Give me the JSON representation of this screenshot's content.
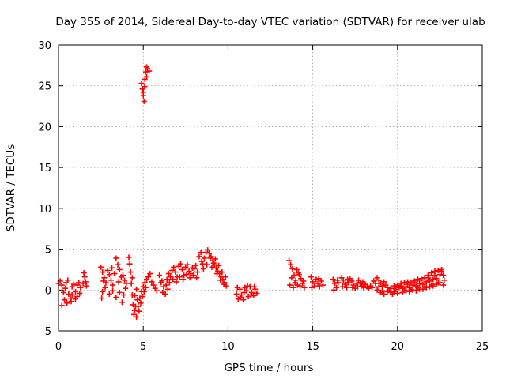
{
  "chart_data": {
    "type": "scatter",
    "title": "Day 355 of 2014, Sidereal Day-to-day VTEC variation (SDTVAR) for receiver ulab",
    "xlabel": "GPS time / hours",
    "ylabel": "SDTVAR / TECUs",
    "xlim": [
      0,
      25
    ],
    "ylim": [
      -5,
      30
    ],
    "xticks": [
      0,
      5,
      10,
      15,
      20,
      25
    ],
    "yticks": [
      -5,
      0,
      5,
      10,
      15,
      20,
      25,
      30
    ],
    "grid": true,
    "marker": "+",
    "color": "#ff0000",
    "series": [
      {
        "name": "SDTVAR",
        "points": [
          [
            0.0,
            0.8
          ],
          [
            0.1,
            1.1
          ],
          [
            0.2,
            0.6
          ],
          [
            0.3,
            -0.3
          ],
          [
            0.35,
            -1.2
          ],
          [
            0.45,
            0.9
          ],
          [
            0.55,
            1.2
          ],
          [
            0.6,
            -0.5
          ],
          [
            0.7,
            -1.0
          ],
          [
            0.8,
            0.4
          ],
          [
            0.9,
            0.7
          ],
          [
            1.0,
            -0.2
          ],
          [
            1.1,
            -0.8
          ],
          [
            1.2,
            0.9
          ],
          [
            1.3,
            0.3
          ],
          [
            0.2,
            -1.9
          ],
          [
            0.5,
            -1.6
          ],
          [
            0.75,
            -1.4
          ],
          [
            1.0,
            -1.1
          ],
          [
            1.1,
            0.6
          ],
          [
            1.5,
            2.1
          ],
          [
            1.55,
            1.6
          ],
          [
            1.6,
            1.0
          ],
          [
            1.65,
            0.5
          ],
          [
            1.45,
            0.8
          ],
          [
            0.4,
            0.2
          ],
          [
            0.8,
            -0.6
          ],
          [
            1.25,
            -0.4
          ],
          [
            2.5,
            2.8
          ],
          [
            2.6,
            2.2
          ],
          [
            2.7,
            1.5
          ],
          [
            2.8,
            0.9
          ],
          [
            2.9,
            2.4
          ],
          [
            3.0,
            1.9
          ],
          [
            3.1,
            1.2
          ],
          [
            3.2,
            0.6
          ],
          [
            3.3,
            2.0
          ],
          [
            3.4,
            3.9
          ],
          [
            3.5,
            3.1
          ],
          [
            3.6,
            2.5
          ],
          [
            3.7,
            1.6
          ],
          [
            3.8,
            1.8
          ],
          [
            3.9,
            1.2
          ],
          [
            4.0,
            0.8
          ],
          [
            2.55,
            -1.0
          ],
          [
            2.6,
            -0.2
          ],
          [
            2.75,
            0.3
          ],
          [
            3.0,
            -0.5
          ],
          [
            3.2,
            -0.1
          ],
          [
            3.4,
            -0.9
          ],
          [
            3.6,
            -0.3
          ],
          [
            3.75,
            -1.5
          ],
          [
            3.85,
            -0.6
          ],
          [
            3.95,
            0.2
          ],
          [
            2.65,
            1.1
          ],
          [
            3.55,
            1.0
          ],
          [
            3.15,
            2.7
          ],
          [
            4.15,
            4.0
          ],
          [
            4.2,
            3.2
          ],
          [
            4.25,
            2.2
          ],
          [
            4.3,
            0.8
          ],
          [
            4.35,
            -0.6
          ],
          [
            4.4,
            -1.8
          ],
          [
            4.5,
            -2.5
          ],
          [
            4.6,
            -3.3
          ],
          [
            4.7,
            -2.0
          ],
          [
            4.8,
            -1.0
          ],
          [
            4.9,
            -0.2
          ],
          [
            5.0,
            0.4
          ],
          [
            5.1,
            0.9
          ],
          [
            5.2,
            1.3
          ],
          [
            5.3,
            1.6
          ],
          [
            5.4,
            2.0
          ],
          [
            4.45,
            -3.0
          ],
          [
            4.55,
            -2.0
          ],
          [
            4.65,
            -1.2
          ],
          [
            4.75,
            -2.6
          ],
          [
            4.85,
            -1.6
          ],
          [
            4.95,
            -0.8
          ],
          [
            5.05,
            -0.2
          ],
          [
            5.15,
            0.3
          ],
          [
            4.5,
            -0.7
          ],
          [
            4.6,
            0.1
          ],
          [
            4.35,
            1.5
          ],
          [
            5.5,
            1.0
          ],
          [
            5.6,
            0.6
          ],
          [
            5.7,
            0.2
          ],
          [
            5.8,
            -0.1
          ],
          [
            4.9,
            25.3
          ],
          [
            4.95,
            24.6
          ],
          [
            5.0,
            23.8
          ],
          [
            5.05,
            23.1
          ],
          [
            5.1,
            25.8
          ],
          [
            5.15,
            26.7
          ],
          [
            5.2,
            27.3
          ],
          [
            5.25,
            27.1
          ],
          [
            5.35,
            26.8
          ],
          [
            5.0,
            24.2
          ],
          [
            5.08,
            24.9
          ],
          [
            5.2,
            26.1
          ],
          [
            5.95,
            1.8
          ],
          [
            6.1,
            1.1
          ],
          [
            6.2,
            0.4
          ],
          [
            6.3,
            -0.5
          ],
          [
            6.4,
            1.3
          ],
          [
            6.5,
            2.0
          ],
          [
            6.6,
            1.6
          ],
          [
            6.7,
            2.4
          ],
          [
            6.8,
            2.8
          ],
          [
            6.9,
            2.2
          ],
          [
            7.0,
            1.6
          ],
          [
            7.1,
            2.9
          ],
          [
            7.2,
            3.2
          ],
          [
            7.3,
            2.5
          ],
          [
            7.4,
            1.8
          ],
          [
            7.5,
            2.8
          ],
          [
            7.6,
            3.1
          ],
          [
            7.7,
            2.3
          ],
          [
            7.8,
            2.0
          ],
          [
            7.9,
            2.7
          ],
          [
            8.0,
            2.6
          ],
          [
            8.1,
            3.0
          ],
          [
            8.2,
            2.2
          ],
          [
            6.15,
            -0.3
          ],
          [
            6.35,
            0.6
          ],
          [
            6.55,
            0.9
          ],
          [
            6.75,
            1.3
          ],
          [
            6.95,
            1.0
          ],
          [
            7.15,
            1.6
          ],
          [
            7.35,
            1.3
          ],
          [
            7.55,
            1.9
          ],
          [
            7.75,
            1.5
          ],
          [
            7.95,
            1.8
          ],
          [
            8.15,
            1.5
          ],
          [
            6.05,
            0.9
          ],
          [
            6.45,
            0.1
          ],
          [
            8.3,
            4.1
          ],
          [
            8.45,
            3.5
          ],
          [
            8.6,
            3.9
          ],
          [
            8.7,
            4.6
          ],
          [
            8.8,
            4.9
          ],
          [
            8.9,
            4.5
          ],
          [
            9.0,
            4.1
          ],
          [
            9.1,
            3.6
          ],
          [
            9.2,
            3.1
          ],
          [
            9.3,
            2.7
          ],
          [
            9.4,
            2.3
          ],
          [
            9.5,
            2.0
          ],
          [
            9.6,
            1.6
          ],
          [
            9.7,
            1.3
          ],
          [
            9.8,
            0.9
          ],
          [
            9.9,
            0.5
          ],
          [
            8.5,
            3.2
          ],
          [
            8.95,
            3.9
          ],
          [
            9.15,
            3.3
          ],
          [
            9.35,
            2.0
          ],
          [
            9.55,
            1.2
          ],
          [
            9.75,
            0.7
          ],
          [
            9.05,
            2.8
          ],
          [
            8.75,
            3.1
          ],
          [
            8.55,
            2.6
          ],
          [
            8.4,
            4.6
          ],
          [
            9.25,
            3.8
          ],
          [
            9.45,
            3.0
          ],
          [
            9.65,
            2.2
          ],
          [
            9.85,
            1.6
          ],
          [
            10.5,
            -0.5
          ],
          [
            10.6,
            -1.1
          ],
          [
            10.7,
            0.1
          ],
          [
            10.8,
            -0.6
          ],
          [
            10.9,
            -1.2
          ],
          [
            11.0,
            0.3
          ],
          [
            11.1,
            -0.1
          ],
          [
            11.2,
            -0.8
          ],
          [
            11.3,
            0.4
          ],
          [
            11.4,
            -0.3
          ],
          [
            11.5,
            -0.7
          ],
          [
            11.6,
            0.1
          ],
          [
            11.7,
            -0.4
          ],
          [
            10.55,
            0.3
          ],
          [
            10.75,
            -0.9
          ],
          [
            10.95,
            -0.3
          ],
          [
            11.15,
            0.5
          ],
          [
            11.35,
            -0.6
          ],
          [
            11.55,
            0.4
          ],
          [
            13.6,
            3.6
          ],
          [
            13.7,
            3.1
          ],
          [
            13.8,
            2.6
          ],
          [
            13.9,
            1.8
          ],
          [
            14.0,
            1.2
          ],
          [
            14.1,
            0.6
          ],
          [
            14.2,
            1.9
          ],
          [
            14.3,
            1.4
          ],
          [
            14.4,
            0.8
          ],
          [
            14.5,
            0.3
          ],
          [
            13.65,
            0.6
          ],
          [
            13.75,
            1.5
          ],
          [
            13.85,
            0.3
          ],
          [
            13.95,
            0.9
          ],
          [
            14.05,
            2.5
          ],
          [
            14.15,
            2.1
          ],
          [
            14.25,
            0.5
          ],
          [
            14.45,
            1.1
          ],
          [
            14.9,
            1.6
          ],
          [
            15.0,
            1.0
          ],
          [
            15.1,
            0.5
          ],
          [
            15.2,
            1.3
          ],
          [
            15.3,
            0.8
          ],
          [
            15.4,
            0.4
          ],
          [
            15.5,
            1.1
          ],
          [
            15.6,
            0.6
          ],
          [
            14.95,
            0.3
          ],
          [
            15.35,
            1.4
          ],
          [
            16.2,
            1.3
          ],
          [
            16.3,
            0.8
          ],
          [
            16.4,
            0.3
          ],
          [
            16.5,
            0.9
          ],
          [
            16.7,
            1.5
          ],
          [
            16.8,
            1.2
          ],
          [
            16.9,
            0.7
          ],
          [
            17.0,
            0.3
          ],
          [
            17.1,
            0.9
          ],
          [
            17.2,
            1.4
          ],
          [
            17.3,
            1.1
          ],
          [
            17.4,
            0.6
          ],
          [
            17.5,
            0.2
          ],
          [
            17.6,
            0.8
          ],
          [
            17.7,
            1.2
          ],
          [
            17.8,
            0.9
          ],
          [
            17.9,
            0.5
          ],
          [
            18.0,
            0.3
          ],
          [
            18.1,
            0.7
          ],
          [
            18.2,
            0.4
          ],
          [
            18.3,
            0.2
          ],
          [
            18.4,
            0.5
          ],
          [
            18.5,
            0.3
          ],
          [
            16.25,
            0.0
          ],
          [
            16.45,
            1.2
          ],
          [
            16.75,
            0.4
          ],
          [
            17.05,
            1.3
          ],
          [
            17.35,
            0.3
          ],
          [
            17.65,
            0.4
          ],
          [
            17.95,
            1.0
          ],
          [
            18.6,
            1.1
          ],
          [
            18.7,
            0.8
          ],
          [
            18.8,
            1.5
          ],
          [
            18.9,
            1.2
          ],
          [
            19.0,
            0.8
          ],
          [
            19.1,
            0.5
          ],
          [
            19.2,
            1.0
          ],
          [
            19.3,
            0.6
          ],
          [
            19.4,
            0.3
          ],
          [
            19.5,
            0.0
          ],
          [
            19.6,
            -0.3
          ],
          [
            19.7,
            -0.5
          ],
          [
            19.8,
            -0.2
          ],
          [
            19.9,
            0.1
          ],
          [
            20.0,
            -0.4
          ],
          [
            20.1,
            0.3
          ],
          [
            20.2,
            0.5
          ],
          [
            20.3,
            0.2
          ],
          [
            20.4,
            0.0
          ],
          [
            20.5,
            0.4
          ],
          [
            20.6,
            0.7
          ],
          [
            20.7,
            0.3
          ],
          [
            20.8,
            0.1
          ],
          [
            20.9,
            0.6
          ],
          [
            21.0,
            0.9
          ],
          [
            21.1,
            0.5
          ],
          [
            21.2,
            0.3
          ],
          [
            21.3,
            0.8
          ],
          [
            21.4,
            1.2
          ],
          [
            21.5,
            0.7
          ],
          [
            21.6,
            0.4
          ],
          [
            21.7,
            1.0
          ],
          [
            21.8,
            1.5
          ],
          [
            21.9,
            1.1
          ],
          [
            22.0,
            0.6
          ],
          [
            22.1,
            1.3
          ],
          [
            22.2,
            1.8
          ],
          [
            22.3,
            1.4
          ],
          [
            22.4,
            0.9
          ],
          [
            22.5,
            1.9
          ],
          [
            22.6,
            2.3
          ],
          [
            22.7,
            1.8
          ],
          [
            22.75,
            1.2
          ],
          [
            22.6,
            2.5
          ],
          [
            22.4,
            2.4
          ],
          [
            22.2,
            2.3
          ],
          [
            22.0,
            2.1
          ],
          [
            21.8,
            1.8
          ],
          [
            21.6,
            1.5
          ],
          [
            21.4,
            1.4
          ],
          [
            21.2,
            1.3
          ],
          [
            21.0,
            1.1
          ],
          [
            20.8,
            0.9
          ],
          [
            20.6,
            1.0
          ],
          [
            20.4,
            0.9
          ],
          [
            20.2,
            0.8
          ],
          [
            20.0,
            0.6
          ],
          [
            19.8,
            0.5
          ],
          [
            19.6,
            0.2
          ],
          [
            19.4,
            -0.2
          ],
          [
            19.2,
            -0.5
          ],
          [
            19.0,
            -0.3
          ],
          [
            18.8,
            0.0
          ],
          [
            18.9,
            0.4
          ],
          [
            19.1,
            -0.1
          ],
          [
            20.3,
            -0.3
          ],
          [
            20.5,
            -0.1
          ],
          [
            20.7,
            -0.2
          ],
          [
            20.9,
            0.0
          ],
          [
            21.1,
            -0.1
          ],
          [
            21.3,
            0.1
          ],
          [
            21.5,
            0.1
          ],
          [
            21.7,
            0.3
          ],
          [
            21.9,
            0.4
          ],
          [
            22.1,
            0.5
          ],
          [
            22.3,
            0.7
          ],
          [
            22.5,
            0.9
          ],
          [
            22.7,
            0.6
          ]
        ]
      }
    ]
  }
}
